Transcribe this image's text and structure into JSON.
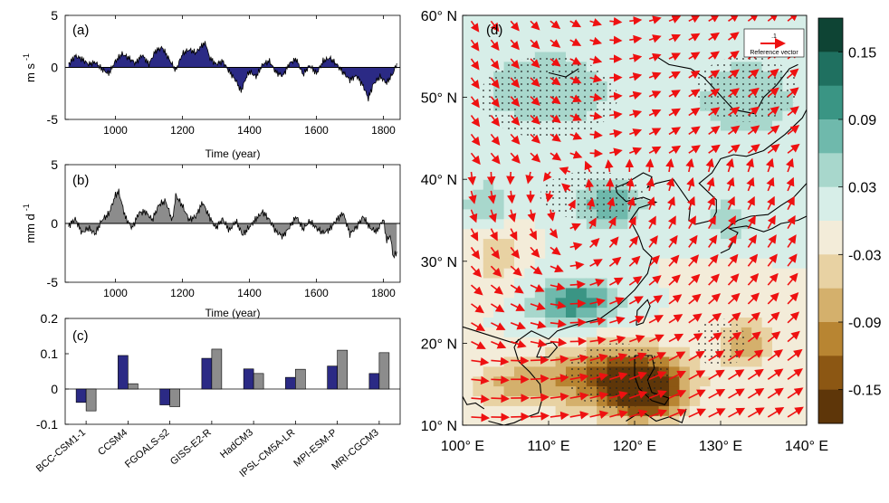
{
  "colors": {
    "blue": "#2b2a85",
    "gray": "#8c8c8c",
    "vector": "#ee1111",
    "land": "#ffffff"
  },
  "chart_data": [
    {
      "panel": "a",
      "type": "area",
      "panel_label": "(a)",
      "xlabel": "Time (year)",
      "ylabel_main": "m s",
      "ylabel_exp": "-1",
      "xlim": [
        850,
        1850
      ],
      "ylim": [
        -5,
        5
      ],
      "xticks": [
        1000,
        1200,
        1400,
        1600,
        1800
      ],
      "yticks": [
        -5,
        0,
        5
      ],
      "x": [
        860,
        880,
        900,
        920,
        940,
        960,
        980,
        1000,
        1020,
        1040,
        1060,
        1080,
        1100,
        1120,
        1140,
        1160,
        1180,
        1200,
        1220,
        1240,
        1260,
        1270,
        1280,
        1300,
        1320,
        1340,
        1360,
        1375,
        1390,
        1400,
        1420,
        1440,
        1460,
        1480,
        1500,
        1520,
        1540,
        1560,
        1580,
        1600,
        1620,
        1640,
        1660,
        1680,
        1700,
        1720,
        1740,
        1755,
        1770,
        1790,
        1810,
        1830,
        1840
      ],
      "y": [
        0.3,
        1.1,
        0.8,
        0.3,
        0.5,
        -0.2,
        -0.6,
        0.6,
        1.3,
        0.9,
        0.4,
        1.2,
        0.3,
        1.6,
        1.9,
        0.8,
        -0.3,
        1.3,
        1.7,
        1.4,
        2.2,
        2.3,
        1.0,
        0.3,
        0.6,
        -0.4,
        -1.3,
        -2.3,
        -1.0,
        -0.4,
        -0.9,
        0.3,
        0.6,
        -0.5,
        -0.8,
        0.4,
        0.8,
        -0.7,
        0.2,
        -0.6,
        0.6,
        0.9,
        0.3,
        -0.5,
        -1.2,
        -0.8,
        -1.8,
        -3.0,
        -1.6,
        -0.9,
        -1.5,
        -0.5,
        0.4
      ]
    },
    {
      "panel": "b",
      "type": "area",
      "panel_label": "(b)",
      "xlabel": "Time (year)",
      "ylabel_main": "mm d",
      "ylabel_exp": "-1",
      "xlim": [
        850,
        1850
      ],
      "ylim": [
        -5,
        5
      ],
      "xticks": [
        1000,
        1200,
        1400,
        1600,
        1800
      ],
      "yticks": [
        -5,
        0,
        5
      ],
      "x": [
        860,
        880,
        900,
        920,
        940,
        960,
        980,
        1000,
        1010,
        1030,
        1050,
        1070,
        1090,
        1110,
        1130,
        1150,
        1170,
        1180,
        1200,
        1220,
        1240,
        1260,
        1280,
        1300,
        1320,
        1340,
        1360,
        1380,
        1400,
        1420,
        1440,
        1460,
        1480,
        1500,
        1520,
        1540,
        1560,
        1580,
        1600,
        1620,
        1640,
        1660,
        1680,
        1700,
        1720,
        1740,
        1760,
        1780,
        1800,
        1810,
        1820,
        1830,
        1840
      ],
      "y": [
        -0.2,
        0.4,
        -0.8,
        -0.4,
        -0.9,
        0.3,
        0.8,
        2.4,
        2.7,
        0.5,
        -0.4,
        0.9,
        1.0,
        0.3,
        1.6,
        1.9,
        0.2,
        2.4,
        1.5,
        0.3,
        0.6,
        1.8,
        0.6,
        -0.4,
        0.4,
        -0.6,
        0.2,
        -1.0,
        -0.3,
        0.4,
        1.0,
        0.3,
        -0.7,
        -1.1,
        -0.3,
        0.6,
        -0.5,
        0.2,
        -0.4,
        -0.8,
        -0.5,
        0.3,
        0.9,
        -0.9,
        -0.3,
        0.6,
        -0.4,
        -0.7,
        0.4,
        -1.5,
        -1.0,
        -2.9,
        -2.4
      ]
    },
    {
      "panel": "c",
      "type": "bar",
      "panel_label": "(c)",
      "categories": [
        "BCC-CSM1-1",
        "CCSM4",
        "FGOALS-s2",
        "GISS-E2-R",
        "HadCM3",
        "IPSL-CM5A-LR",
        "MPI-ESM-P",
        "MRI-CGCM3"
      ],
      "series": [
        {
          "color": "#2b2a85",
          "values": [
            -0.038,
            0.095,
            -0.045,
            0.087,
            0.057,
            0.033,
            0.065,
            0.044
          ]
        },
        {
          "color": "#8c8c8c",
          "values": [
            -0.062,
            0.015,
            -0.05,
            0.113,
            0.044,
            0.056,
            0.11,
            0.103
          ]
        }
      ],
      "ylim": [
        -0.1,
        0.2
      ],
      "yticks": [
        -0.1,
        0,
        0.1,
        0.2
      ],
      "ytick_labels": [
        "-0.1",
        "0",
        "0.1",
        "0.2"
      ]
    },
    {
      "panel": "d",
      "type": "heatmap",
      "panel_label": "(d)",
      "xlim": [
        100,
        140
      ],
      "ylim": [
        10,
        60
      ],
      "xticks": [
        100,
        110,
        120,
        130,
        140
      ],
      "xtick_labels": [
        "100° E",
        "110° E",
        "120° E",
        "130° E",
        "140° E"
      ],
      "yticks": [
        10,
        20,
        30,
        40,
        50,
        60
      ],
      "ytick_labels": [
        "10° N",
        "20° N",
        "30° N",
        "40° N",
        "50° N",
        "60° N"
      ],
      "reference_vector_value": ".1",
      "reference_vector_label": "Reference vector",
      "colorbar": {
        "ticks": [
          "0.15",
          "0.09",
          "0.03",
          "-0.03",
          "-0.09",
          "-0.15"
        ],
        "colors": [
          "#0e4434",
          "#1f7060",
          "#3a9584",
          "#6fb9ac",
          "#a8d7cc",
          "#d7eee8",
          "#f3ecd9",
          "#e8d2a3",
          "#d4b06c",
          "#b88532",
          "#8c5713",
          "#5e3609"
        ]
      },
      "fill_blobs": [
        {
          "lon": 118,
          "lat": 16,
          "rx": 8,
          "ry": 4,
          "level": -0.13
        },
        {
          "lon": 121,
          "lat": 14,
          "rx": 4,
          "ry": 3,
          "level": -0.17
        },
        {
          "lon": 106,
          "lat": 15,
          "rx": 6,
          "ry": 3,
          "level": -0.06
        },
        {
          "lon": 133,
          "lat": 20,
          "rx": 3,
          "ry": 3,
          "level": -0.08
        },
        {
          "lon": 104,
          "lat": 31,
          "rx": 3,
          "ry": 4,
          "level": -0.05
        },
        {
          "lon": 130,
          "lat": 28,
          "rx": 4,
          "ry": 3,
          "level": -0.02
        },
        {
          "lon": 113,
          "lat": 25,
          "rx": 5,
          "ry": 3,
          "level": 0.11
        },
        {
          "lon": 117,
          "lat": 37,
          "rx": 4,
          "ry": 3,
          "level": 0.09
        },
        {
          "lon": 110,
          "lat": 51,
          "rx": 8,
          "ry": 5,
          "level": 0.06
        },
        {
          "lon": 133,
          "lat": 50,
          "rx": 6,
          "ry": 5,
          "level": 0.06
        },
        {
          "lon": 103,
          "lat": 37,
          "rx": 3,
          "ry": 3,
          "level": 0.06
        },
        {
          "lon": 131,
          "lat": 35,
          "rx": 4,
          "ry": 4,
          "level": 0.04
        }
      ]
    }
  ]
}
